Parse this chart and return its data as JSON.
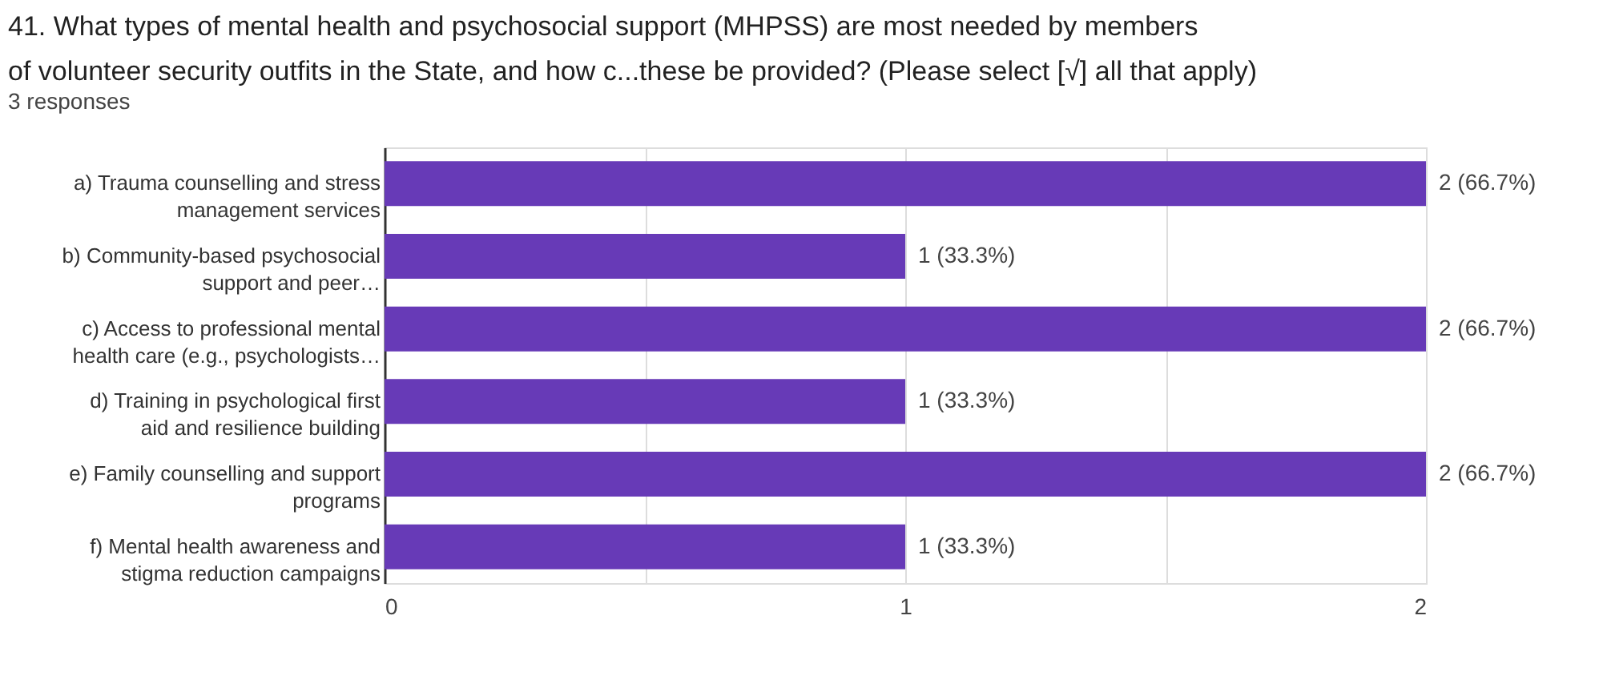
{
  "chart_data": {
    "type": "bar",
    "orientation": "horizontal",
    "title": "41. What types of mental health and psychosocial support (MHPSS) are most needed by members of volunteer security outfits in the State, and how c...these be provided? (Please select [√] all that apply)",
    "subtitle": "3 responses",
    "categories": [
      "a) Trauma counselling and stress management services",
      "b) Community-based psychosocial support and peer…",
      "c) Access to professional mental health care (e.g., psychologists…",
      "d) Training in psychological first aid and resilience building",
      "e) Family counselling and support programs",
      "f) Mental health awareness and stigma reduction campaigns"
    ],
    "values": [
      2,
      1,
      2,
      1,
      2,
      1
    ],
    "value_labels": [
      "2 (66.7%)",
      "1 (33.3%)",
      "2 (66.7%)",
      "1 (33.3%)",
      "2 (66.7%)",
      "1 (33.3%)"
    ],
    "color": "#673ab7",
    "xlim": [
      0,
      2
    ],
    "xticks": [
      0,
      {
        "value": 0.5,
        "label": null
      },
      1,
      {
        "value": 1.5,
        "label": null
      },
      2
    ],
    "grid": "x"
  }
}
